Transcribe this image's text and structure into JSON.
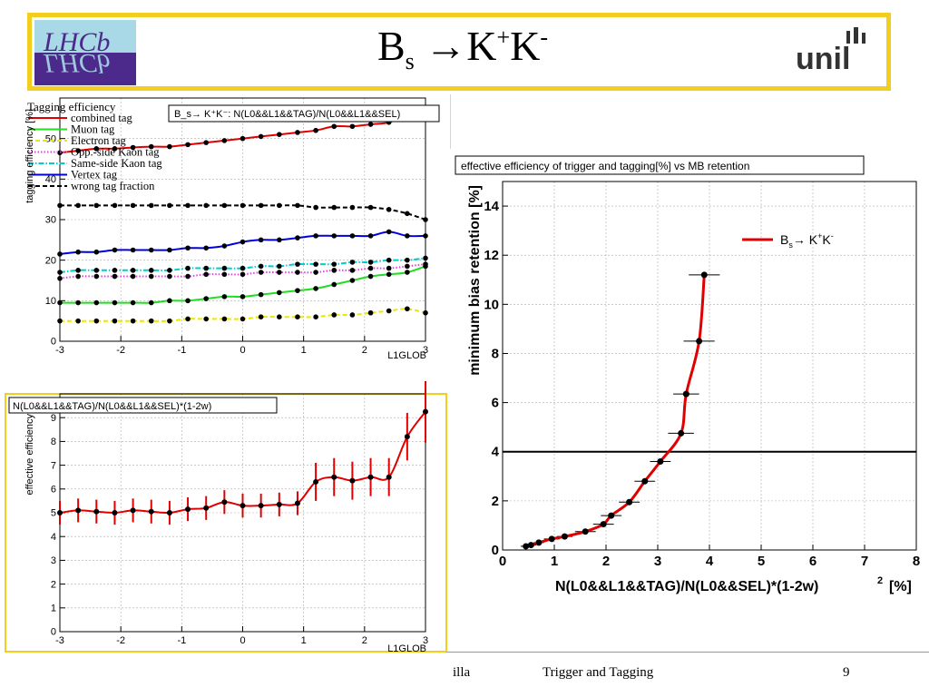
{
  "slide": {
    "title_main": "B",
    "title_sub": "s",
    "title_arrow": " →K",
    "title_sup1": "+",
    "title_k2": "K",
    "title_sup2": "-",
    "footer_left": "illa",
    "footer_center": "Trigger and Tagging",
    "page_number": "9",
    "logo_left_text": "LHCb",
    "logo_right_text": "unil",
    "colors": {
      "frame": "#f2cf1f",
      "lhcb_bg": "#4b2a8c",
      "lhcb_top": "#a9d8e6"
    }
  },
  "chart_data": [
    {
      "type": "line",
      "title": "B_s→ K⁺K⁻: N(L0&&L1&&TAG)/N(L0&&L1&&SEL)",
      "xlabel": "L1GLOB",
      "ylabel": "tagging efficiency [%]",
      "xlim": [
        -3,
        3
      ],
      "ylim": [
        0,
        60
      ],
      "xticks": [
        "-3",
        "-2",
        "-1",
        "0",
        "1",
        "2",
        "3"
      ],
      "yticks": [
        "0",
        "10",
        "20",
        "30",
        "40",
        "50"
      ],
      "legend_title": "Tagging efficiency",
      "legend_position": "top-left",
      "x": [
        -3.0,
        -2.7,
        -2.4,
        -2.1,
        -1.8,
        -1.5,
        -1.2,
        -0.9,
        -0.6,
        -0.3,
        0.0,
        0.3,
        0.6,
        0.9,
        1.2,
        1.5,
        1.8,
        2.1,
        2.4,
        2.7,
        3.0
      ],
      "series": [
        {
          "name": "combined tag",
          "color": "#e00000",
          "style": "solid",
          "values": [
            46.5,
            47,
            47.5,
            47.5,
            47.8,
            48,
            48,
            48.5,
            49,
            49.5,
            50,
            50.5,
            51,
            51.5,
            52,
            53,
            53,
            53.5,
            54,
            56,
            57
          ]
        },
        {
          "name": "Muon tag",
          "color": "#22dd22",
          "style": "solid",
          "values": [
            9.5,
            9.5,
            9.5,
            9.5,
            9.5,
            9.5,
            10,
            10,
            10.5,
            11,
            11,
            11.5,
            12,
            12.5,
            13,
            14,
            15,
            16,
            16.5,
            17,
            18.5
          ]
        },
        {
          "name": "Electron tag",
          "color": "#e8e800",
          "style": "dashed",
          "values": [
            5,
            5,
            5,
            5,
            5,
            5,
            5,
            5.5,
            5.5,
            5.5,
            5.5,
            6,
            6,
            6,
            6,
            6.5,
            6.5,
            7,
            7.5,
            8,
            7
          ]
        },
        {
          "name": "Opp.-side Kaon tag",
          "color": "#e040e0",
          "style": "dotted",
          "values": [
            15.5,
            16,
            16,
            16,
            16,
            16,
            16,
            16,
            16.5,
            16.5,
            16.5,
            17,
            17,
            17,
            17,
            17.5,
            17.5,
            18,
            18,
            18.5,
            19
          ]
        },
        {
          "name": "Same-side Kaon tag",
          "color": "#00cccc",
          "style": "dashdot",
          "values": [
            17,
            17.5,
            17.5,
            17.5,
            17.5,
            17.5,
            17.5,
            18,
            18,
            18,
            18,
            18.5,
            18.5,
            19,
            19,
            19,
            19.5,
            19.5,
            20,
            20,
            20.5
          ]
        },
        {
          "name": "Vertex tag",
          "color": "#0000dd",
          "style": "solid",
          "values": [
            21.5,
            22,
            22,
            22.5,
            22.5,
            22.5,
            22.5,
            23,
            23,
            23.5,
            24.5,
            25,
            25,
            25.5,
            26,
            26,
            26,
            26,
            27,
            26,
            26
          ]
        },
        {
          "name": "wrong tag fraction",
          "color": "#000000",
          "style": "dashed",
          "values": [
            33.5,
            33.5,
            33.5,
            33.5,
            33.5,
            33.5,
            33.5,
            33.5,
            33.5,
            33.5,
            33.5,
            33.5,
            33.5,
            33.5,
            33,
            33,
            33,
            33,
            32.5,
            31.5,
            30
          ]
        }
      ]
    },
    {
      "type": "line",
      "title": "N(L0&&L1&&TAG)/N(L0&&L1&&SEL)*(1-2w)",
      "xlabel": "L1GLOB",
      "ylabel": "effective efficiency",
      "xlim": [
        -3,
        3
      ],
      "ylim": [
        0,
        10
      ],
      "xticks": [
        "-3",
        "-2",
        "-1",
        "0",
        "1",
        "2",
        "3"
      ],
      "yticks": [
        "0",
        "1",
        "2",
        "3",
        "4",
        "5",
        "6",
        "7",
        "8",
        "9"
      ],
      "x": [
        -3.0,
        -2.7,
        -2.4,
        -2.1,
        -1.8,
        -1.5,
        -1.2,
        -0.9,
        -0.6,
        -0.3,
        0.0,
        0.3,
        0.6,
        0.9,
        1.2,
        1.5,
        1.8,
        2.1,
        2.4,
        2.7,
        3.0
      ],
      "series": [
        {
          "name": "",
          "color": "#e00000",
          "values": [
            5.0,
            5.1,
            5.05,
            5.0,
            5.1,
            5.05,
            5.0,
            5.15,
            5.2,
            5.45,
            5.3,
            5.3,
            5.35,
            5.4,
            6.3,
            6.5,
            6.35,
            6.5,
            6.5,
            8.2,
            9.25
          ],
          "errors": [
            0.5,
            0.5,
            0.5,
            0.5,
            0.5,
            0.5,
            0.5,
            0.5,
            0.5,
            0.5,
            0.5,
            0.5,
            0.5,
            0.5,
            0.8,
            0.8,
            0.8,
            0.8,
            0.8,
            1.0,
            1.3
          ]
        }
      ]
    },
    {
      "type": "scatter",
      "title": "effective efficiency of trigger and tagging[%] vs MB retention",
      "xlabel": "N(L0&&L1&&TAG)/N(L0&&SEL)*(1-2w)",
      "xlabel_sup": "2",
      "xlabel_unit": "[%]",
      "ylabel": "minimum bias retention [%]",
      "xlim": [
        0,
        8
      ],
      "ylim": [
        0,
        15
      ],
      "xticks": [
        "0",
        "1",
        "2",
        "3",
        "4",
        "5",
        "6",
        "7",
        "8"
      ],
      "yticks": [
        "0",
        "2",
        "4",
        "6",
        "8",
        "10",
        "12",
        "14"
      ],
      "legend_position": "top-right",
      "legend": [
        {
          "name": "B",
          "sub": "s",
          "rest": "→ K",
          "sup1": "+",
          "k2": "K",
          "sup2": "-"
        }
      ],
      "hline": 4,
      "series": [
        {
          "name": "B_s→ K⁺K⁻",
          "color": "#e00000",
          "x": [
            0.45,
            0.55,
            0.7,
            0.95,
            1.2,
            1.6,
            1.95,
            2.1,
            2.45,
            2.75,
            3.05,
            3.45,
            3.55,
            3.8,
            3.9
          ],
          "y": [
            0.15,
            0.2,
            0.3,
            0.45,
            0.55,
            0.75,
            1.05,
            1.4,
            1.95,
            2.8,
            3.6,
            4.75,
            6.35,
            8.5,
            11.2
          ],
          "xerr": [
            0.1,
            0.1,
            0.1,
            0.15,
            0.15,
            0.2,
            0.2,
            0.2,
            0.2,
            0.2,
            0.2,
            0.25,
            0.25,
            0.3,
            0.3
          ]
        }
      ]
    }
  ]
}
